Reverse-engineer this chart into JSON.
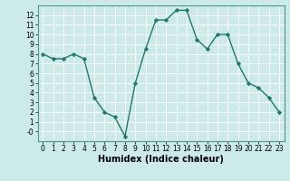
{
  "x": [
    0,
    1,
    2,
    3,
    4,
    5,
    6,
    7,
    8,
    9,
    10,
    11,
    12,
    13,
    14,
    15,
    16,
    17,
    18,
    19,
    20,
    21,
    22,
    23
  ],
  "y": [
    8,
    7.5,
    7.5,
    8,
    7.5,
    3.5,
    2,
    1.5,
    -0.5,
    5,
    8.5,
    11.5,
    11.5,
    12.5,
    12.5,
    9.5,
    8.5,
    10,
    10,
    7,
    5,
    4.5,
    3.5,
    2
  ],
  "xlabel": "Humidex (Indice chaleur)",
  "xlim": [
    -0.5,
    23.5
  ],
  "ylim": [
    -1,
    13
  ],
  "yticks": [
    0,
    1,
    2,
    3,
    4,
    5,
    6,
    7,
    8,
    9,
    10,
    11,
    12
  ],
  "ytick_labels": [
    "-0",
    "1",
    "2",
    "3",
    "4",
    "5",
    "6",
    "7",
    "8",
    "9",
    "10",
    "11",
    "12"
  ],
  "xticks": [
    0,
    1,
    2,
    3,
    4,
    5,
    6,
    7,
    8,
    9,
    10,
    11,
    12,
    13,
    14,
    15,
    16,
    17,
    18,
    19,
    20,
    21,
    22,
    23
  ],
  "line_color": "#1a7a6e",
  "marker": "D",
  "marker_size": 2.2,
  "bg_color": "#cceae8",
  "grid_color": "#ffffff",
  "tick_fontsize": 5.5,
  "xlabel_fontsize": 7,
  "linewidth": 1.0
}
